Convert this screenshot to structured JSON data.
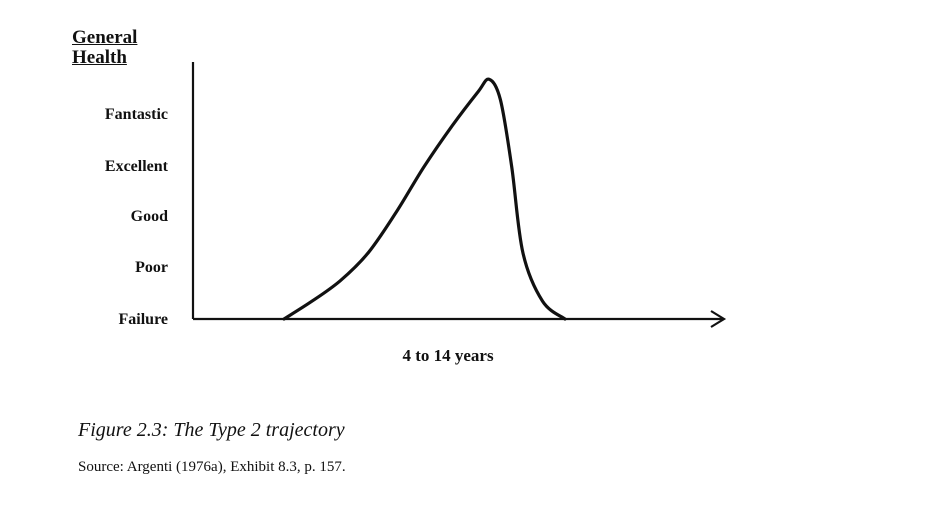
{
  "chart_data": {
    "type": "line",
    "ylabel_line1": "General",
    "ylabel_line2": "Health",
    "xlabel": "4 to 14 years",
    "y_categories": [
      "Failure",
      "Poor",
      "Good",
      "Excellent",
      "Fantastic"
    ],
    "series": [
      {
        "points": [
          {
            "x": 0.0,
            "y": 0.0
          },
          {
            "x": 0.1,
            "y": 0.35
          },
          {
            "x": 0.2,
            "y": 0.75
          },
          {
            "x": 0.3,
            "y": 1.3
          },
          {
            "x": 0.4,
            "y": 2.1
          },
          {
            "x": 0.5,
            "y": 3.0
          },
          {
            "x": 0.6,
            "y": 3.8
          },
          {
            "x": 0.69,
            "y": 4.45
          },
          {
            "x": 0.73,
            "y": 4.7
          },
          {
            "x": 0.77,
            "y": 4.3
          },
          {
            "x": 0.81,
            "y": 3.0
          },
          {
            "x": 0.85,
            "y": 1.3
          },
          {
            "x": 0.92,
            "y": 0.35
          },
          {
            "x": 1.0,
            "y": 0.0
          }
        ]
      }
    ],
    "grid": false
  },
  "caption": "Figure 2.3: The Type 2 trajectory",
  "source": "Source: Argenti (1976a), Exhibit 8.3, p. 157."
}
